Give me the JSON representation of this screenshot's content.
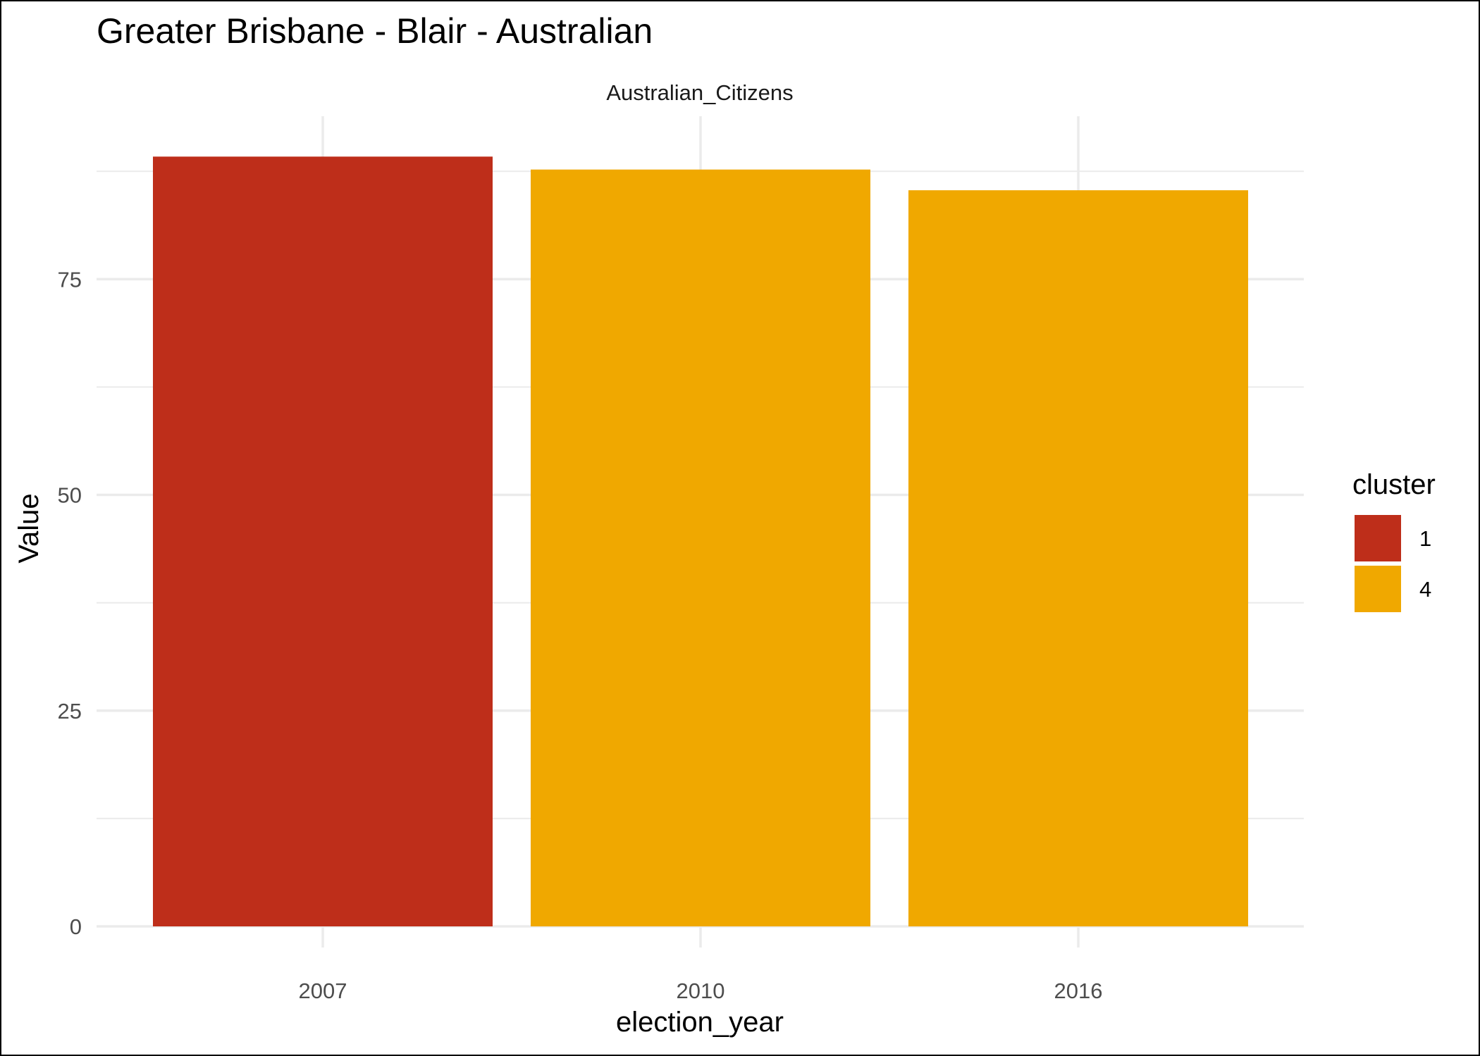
{
  "chart_data": {
    "type": "bar",
    "title": "Greater Brisbane - Blair - Australian",
    "facet_label": "Australian_Citizens",
    "xlabel": "election_year",
    "ylabel": "Value",
    "categories": [
      "2007",
      "2010",
      "2016"
    ],
    "values": [
      89.2,
      87.7,
      85.3
    ],
    "cluster": [
      "1",
      "4",
      "4"
    ],
    "ylim": [
      0,
      92.3
    ],
    "yticks": [
      0,
      25,
      50,
      75
    ],
    "grid": true,
    "legend": {
      "title": "cluster",
      "placement": "right",
      "entries": [
        {
          "label": "1",
          "color": "#BE2E1A"
        },
        {
          "label": "4",
          "color": "#F0A800"
        }
      ]
    }
  }
}
